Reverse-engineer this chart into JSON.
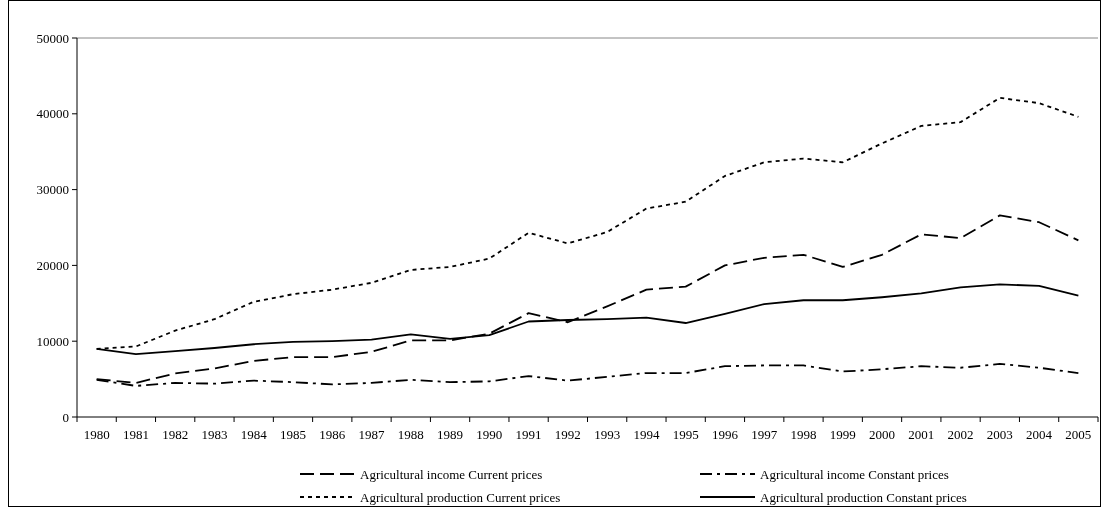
{
  "chart_data": {
    "type": "line",
    "categories": [
      "1980",
      "1981",
      "1982",
      "1983",
      "1984",
      "1985",
      "1986",
      "1987",
      "1988",
      "1989",
      "1990",
      "1991",
      "1992",
      "1993",
      "1994",
      "1995",
      "1996",
      "1997",
      "1998",
      "1999",
      "2000",
      "2001",
      "2002",
      "2003",
      "2004",
      "2005"
    ],
    "series": [
      {
        "name": "Agricultural income Current prices",
        "color": "#000000",
        "line_style": "dashed",
        "values": [
          5000,
          4500,
          5750,
          6400,
          7400,
          7900,
          7900,
          8600,
          10100,
          10100,
          11000,
          13700,
          12500,
          14600,
          16800,
          17200,
          20000,
          21000,
          21400,
          19800,
          21400,
          24100,
          23600,
          26600,
          25700,
          23300
        ]
      },
      {
        "name": "Agricultural income Constant prices",
        "color": "#000000",
        "line_style": "dashdot",
        "values": [
          4900,
          4100,
          4500,
          4400,
          4800,
          4600,
          4300,
          4500,
          4900,
          4600,
          4700,
          5400,
          4800,
          5300,
          5800,
          5800,
          6700,
          6800,
          6800,
          6000,
          6300,
          6700,
          6500,
          7000,
          6500,
          5800
        ]
      },
      {
        "name": "Agricultural production Current prices",
        "color": "#000000",
        "line_style": "dotted",
        "values": [
          9000,
          9300,
          11400,
          12900,
          15200,
          16200,
          16800,
          17700,
          19400,
          19800,
          20900,
          24300,
          22900,
          24400,
          27500,
          28400,
          31800,
          33600,
          34100,
          33600,
          36100,
          38400,
          38900,
          42100,
          41400,
          39600
        ]
      },
      {
        "name": "Agricultural production Constant prices",
        "color": "#000000",
        "line_style": "solid",
        "values": [
          9000,
          8300,
          8700,
          9100,
          9600,
          9900,
          10000,
          10200,
          10900,
          10300,
          10800,
          12600,
          12800,
          12900,
          13100,
          12400,
          13600,
          14900,
          15400,
          15400,
          15800,
          16300,
          17100,
          17500,
          17300,
          16000
        ]
      }
    ],
    "ylim": [
      0,
      50000
    ],
    "yticks": [
      0,
      10000,
      20000,
      30000,
      40000,
      50000
    ],
    "grid": false,
    "legend": "bottom",
    "marker": "none"
  }
}
